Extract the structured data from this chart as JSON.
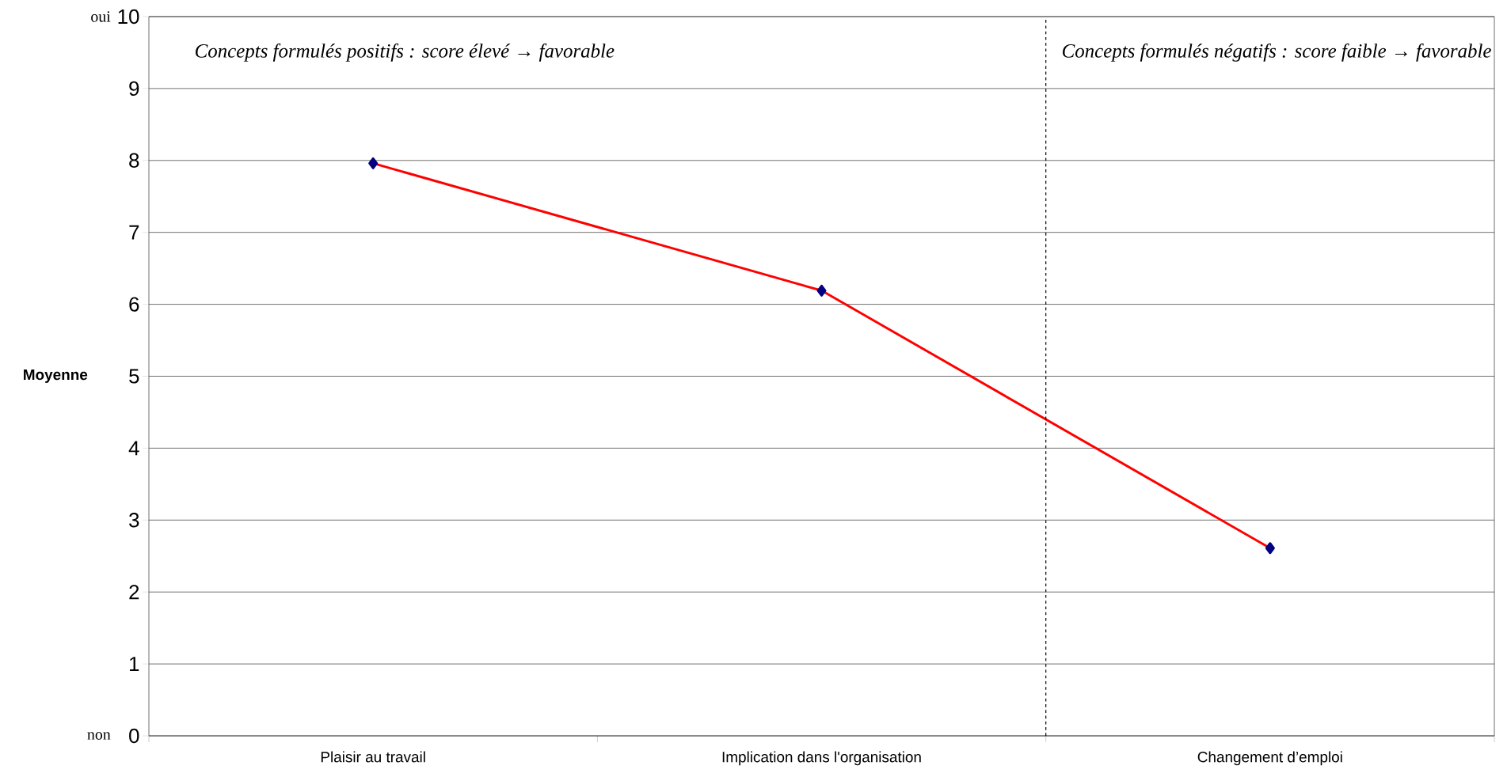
{
  "chart_data": {
    "type": "line",
    "ylabel": "Moyenne",
    "categories": [
      "Plaisir au travail",
      "Implication dans l'organisation",
      "Changement d’emploi"
    ],
    "series": [
      {
        "color": "#ff0000",
        "values": [
          7.96,
          6.19,
          2.61
        ]
      }
    ],
    "marker": "diamond",
    "line_style": "solid",
    "ylim": [
      0,
      10
    ],
    "yticks": [
      0,
      1,
      2,
      3,
      4,
      5,
      6,
      7,
      8,
      9,
      10
    ],
    "grid": "y",
    "annotations": [
      "Concepts formulés positifs : score élevé → favorable",
      "Concepts formulés négatifs : score faible → favorable",
      "oui",
      "non"
    ]
  }
}
